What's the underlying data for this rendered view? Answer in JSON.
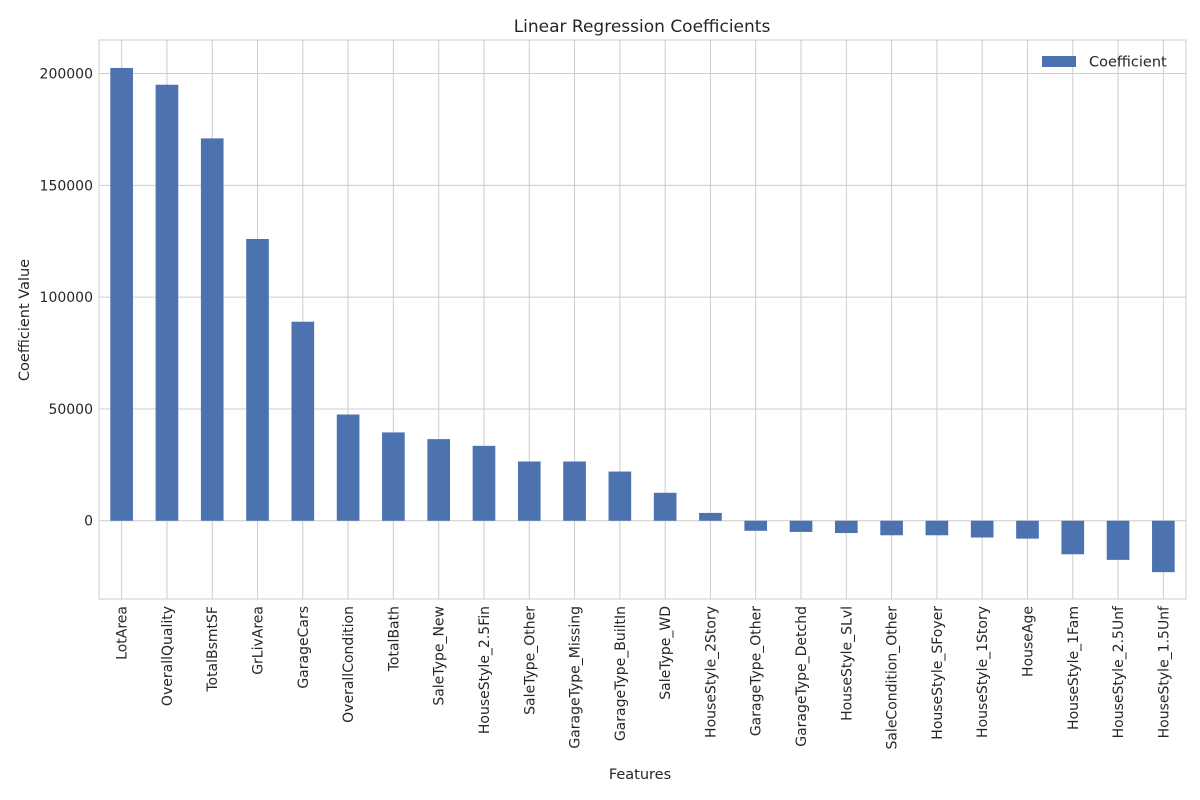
{
  "chart_data": {
    "type": "bar",
    "title": "Linear Regression Coefficients",
    "xlabel": "Features",
    "ylabel": "Coefficient Value",
    "ylim": [
      -35000,
      215000
    ],
    "yticks": [
      0,
      50000,
      100000,
      150000,
      200000
    ],
    "grid": true,
    "legend_position": "top-right",
    "categories": [
      "LotArea",
      "OverallQuality",
      "TotalBsmtSF",
      "GrLivArea",
      "GarageCars",
      "OverallCondition",
      "TotalBath",
      "SaleType_New",
      "HouseStyle_2.5Fin",
      "SaleType_Other",
      "GarageType_Missing",
      "GarageType_BuiltIn",
      "SaleType_WD",
      "HouseStyle_2Story",
      "GarageType_Other",
      "GarageType_Detchd",
      "HouseStyle_SLvl",
      "SaleCondition_Other",
      "HouseStyle_SFoyer",
      "HouseStyle_1Story",
      "HouseAge",
      "HouseStyle_1Fam",
      "HouseStyle_2.5Unf",
      "HouseStyle_1.5Unf"
    ],
    "series": [
      {
        "name": "Coefficient",
        "color": "#4c72b0",
        "values": [
          202500,
          195000,
          171000,
          126000,
          89000,
          47500,
          39500,
          36500,
          33500,
          26500,
          26500,
          22000,
          12500,
          3500,
          -4500,
          -5000,
          -5500,
          -6500,
          -6500,
          -7500,
          -8000,
          -15000,
          -17500,
          -23000
        ]
      }
    ]
  }
}
